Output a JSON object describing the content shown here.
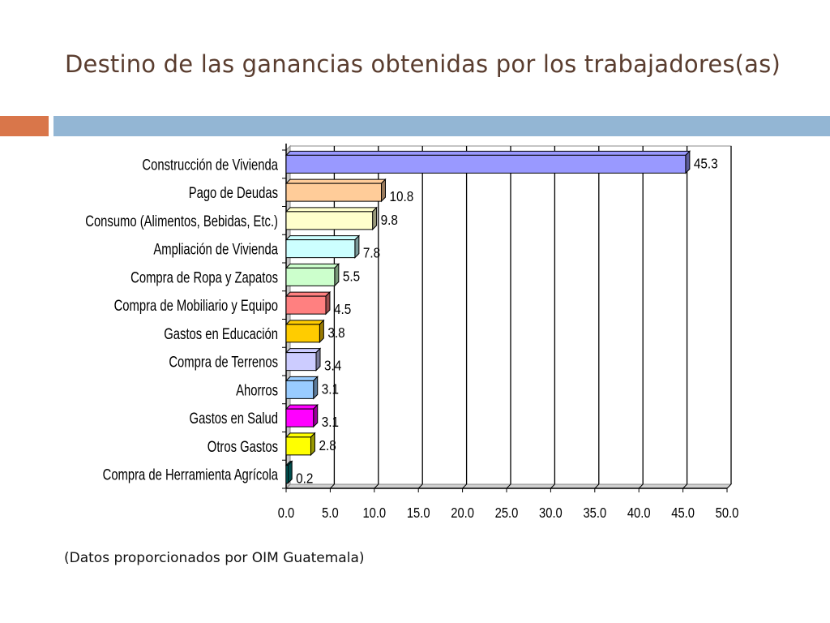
{
  "slide": {
    "title": "Destino de las ganancias obtenidas por los trabajadores(as)",
    "footnote": "(Datos proporcionados por OIM Guatemala)",
    "accent_colors": {
      "orange": "#d9764a",
      "blue": "#93b6d4",
      "title": "#5a3d2f"
    }
  },
  "chart_data": {
    "type": "bar",
    "orientation": "horizontal",
    "title": "",
    "xlabel": "",
    "ylabel": "",
    "xlim": [
      0,
      50
    ],
    "x_ticks": [
      "0.0",
      "5.0",
      "10.0",
      "15.0",
      "20.0",
      "25.0",
      "30.0",
      "35.0",
      "40.0",
      "45.0",
      "50.0"
    ],
    "grid": true,
    "categories": [
      "Construcción de Vivienda",
      "Pago de Deudas",
      "Consumo (Alimentos, Bebidas, Etc.)",
      "Ampliación de Vivienda",
      "Compra de Ropa y Zapatos",
      "Compra de Mobiliario y Equipo",
      "Gastos en Educación",
      "Compra de Terrenos",
      "Ahorros",
      "Gastos en Salud",
      "Otros Gastos",
      "Compra de Herramienta Agrícola"
    ],
    "values": [
      45.3,
      10.8,
      9.8,
      7.8,
      5.5,
      4.5,
      3.8,
      3.4,
      3.1,
      3.1,
      2.8,
      0.2
    ],
    "value_labels": [
      "45.3",
      "10.8",
      "9.8",
      "7.8",
      "5.5",
      "4.5",
      "3.8",
      "3.4",
      "3.1",
      "3.1",
      "2.8",
      "0.2"
    ],
    "colors": [
      "#9999ff",
      "#ffcc99",
      "#ffffcc",
      "#ccffff",
      "#ccffcc",
      "#ff8080",
      "#ffcc00",
      "#ccccff",
      "#99ccff",
      "#ff00ff",
      "#ffff00",
      "#008080"
    ]
  }
}
